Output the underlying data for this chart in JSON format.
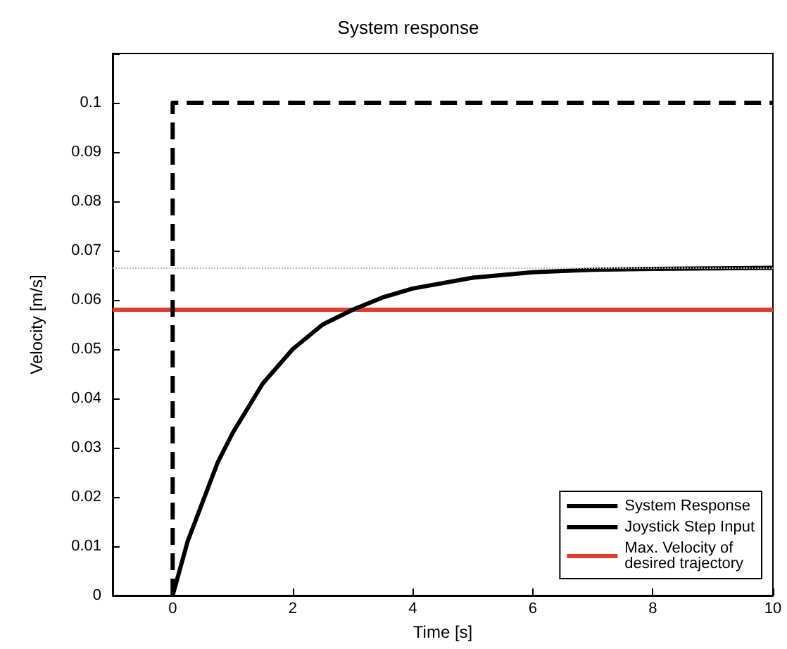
{
  "chart_data": {
    "type": "line",
    "title": "System response",
    "xlabel": "Time [s]",
    "ylabel": "Velocity [m/s]",
    "xlim": [
      -1,
      10
    ],
    "xticks": [
      0,
      2,
      4,
      6,
      8,
      10
    ],
    "ylim": [
      0,
      0.11
    ],
    "yticks": [
      0,
      0.01,
      0.02,
      0.03,
      0.04,
      0.05,
      0.06,
      0.07,
      0.08,
      0.09,
      0.1,
      {
        "value": 0.11,
        "label": null
      }
    ],
    "series": [
      {
        "name": "System Response",
        "color": "#000000",
        "line_style": "solid",
        "x": [
          0,
          0.25,
          0.5,
          0.75,
          1,
          1.5,
          2,
          2.5,
          3,
          3.5,
          4,
          5,
          6,
          7,
          8,
          9,
          10
        ],
        "values": [
          0,
          0.011,
          0.019,
          0.027,
          0.033,
          0.043,
          0.05,
          0.055,
          0.058,
          0.0605,
          0.0623,
          0.0645,
          0.0656,
          0.0661,
          0.0663,
          0.0664,
          0.0665
        ]
      },
      {
        "name": "Joystick Step Input",
        "color": "#000000",
        "line_style": "dashed",
        "x": [
          0,
          0,
          10
        ],
        "values": [
          0,
          0.1,
          0.1
        ]
      },
      {
        "name": "Max. Velocity of desired trajectory",
        "color": "#e03c31",
        "line_style": "solid",
        "x": [
          -1,
          10
        ],
        "values": [
          0.058,
          0.058
        ]
      }
    ],
    "ref_lines": [
      {
        "axis": "y",
        "value": 0.0665,
        "color": "#bbbbbb",
        "line_style": "dotted"
      }
    ],
    "grid": false,
    "legend": "bottom right",
    "marker": "none"
  }
}
